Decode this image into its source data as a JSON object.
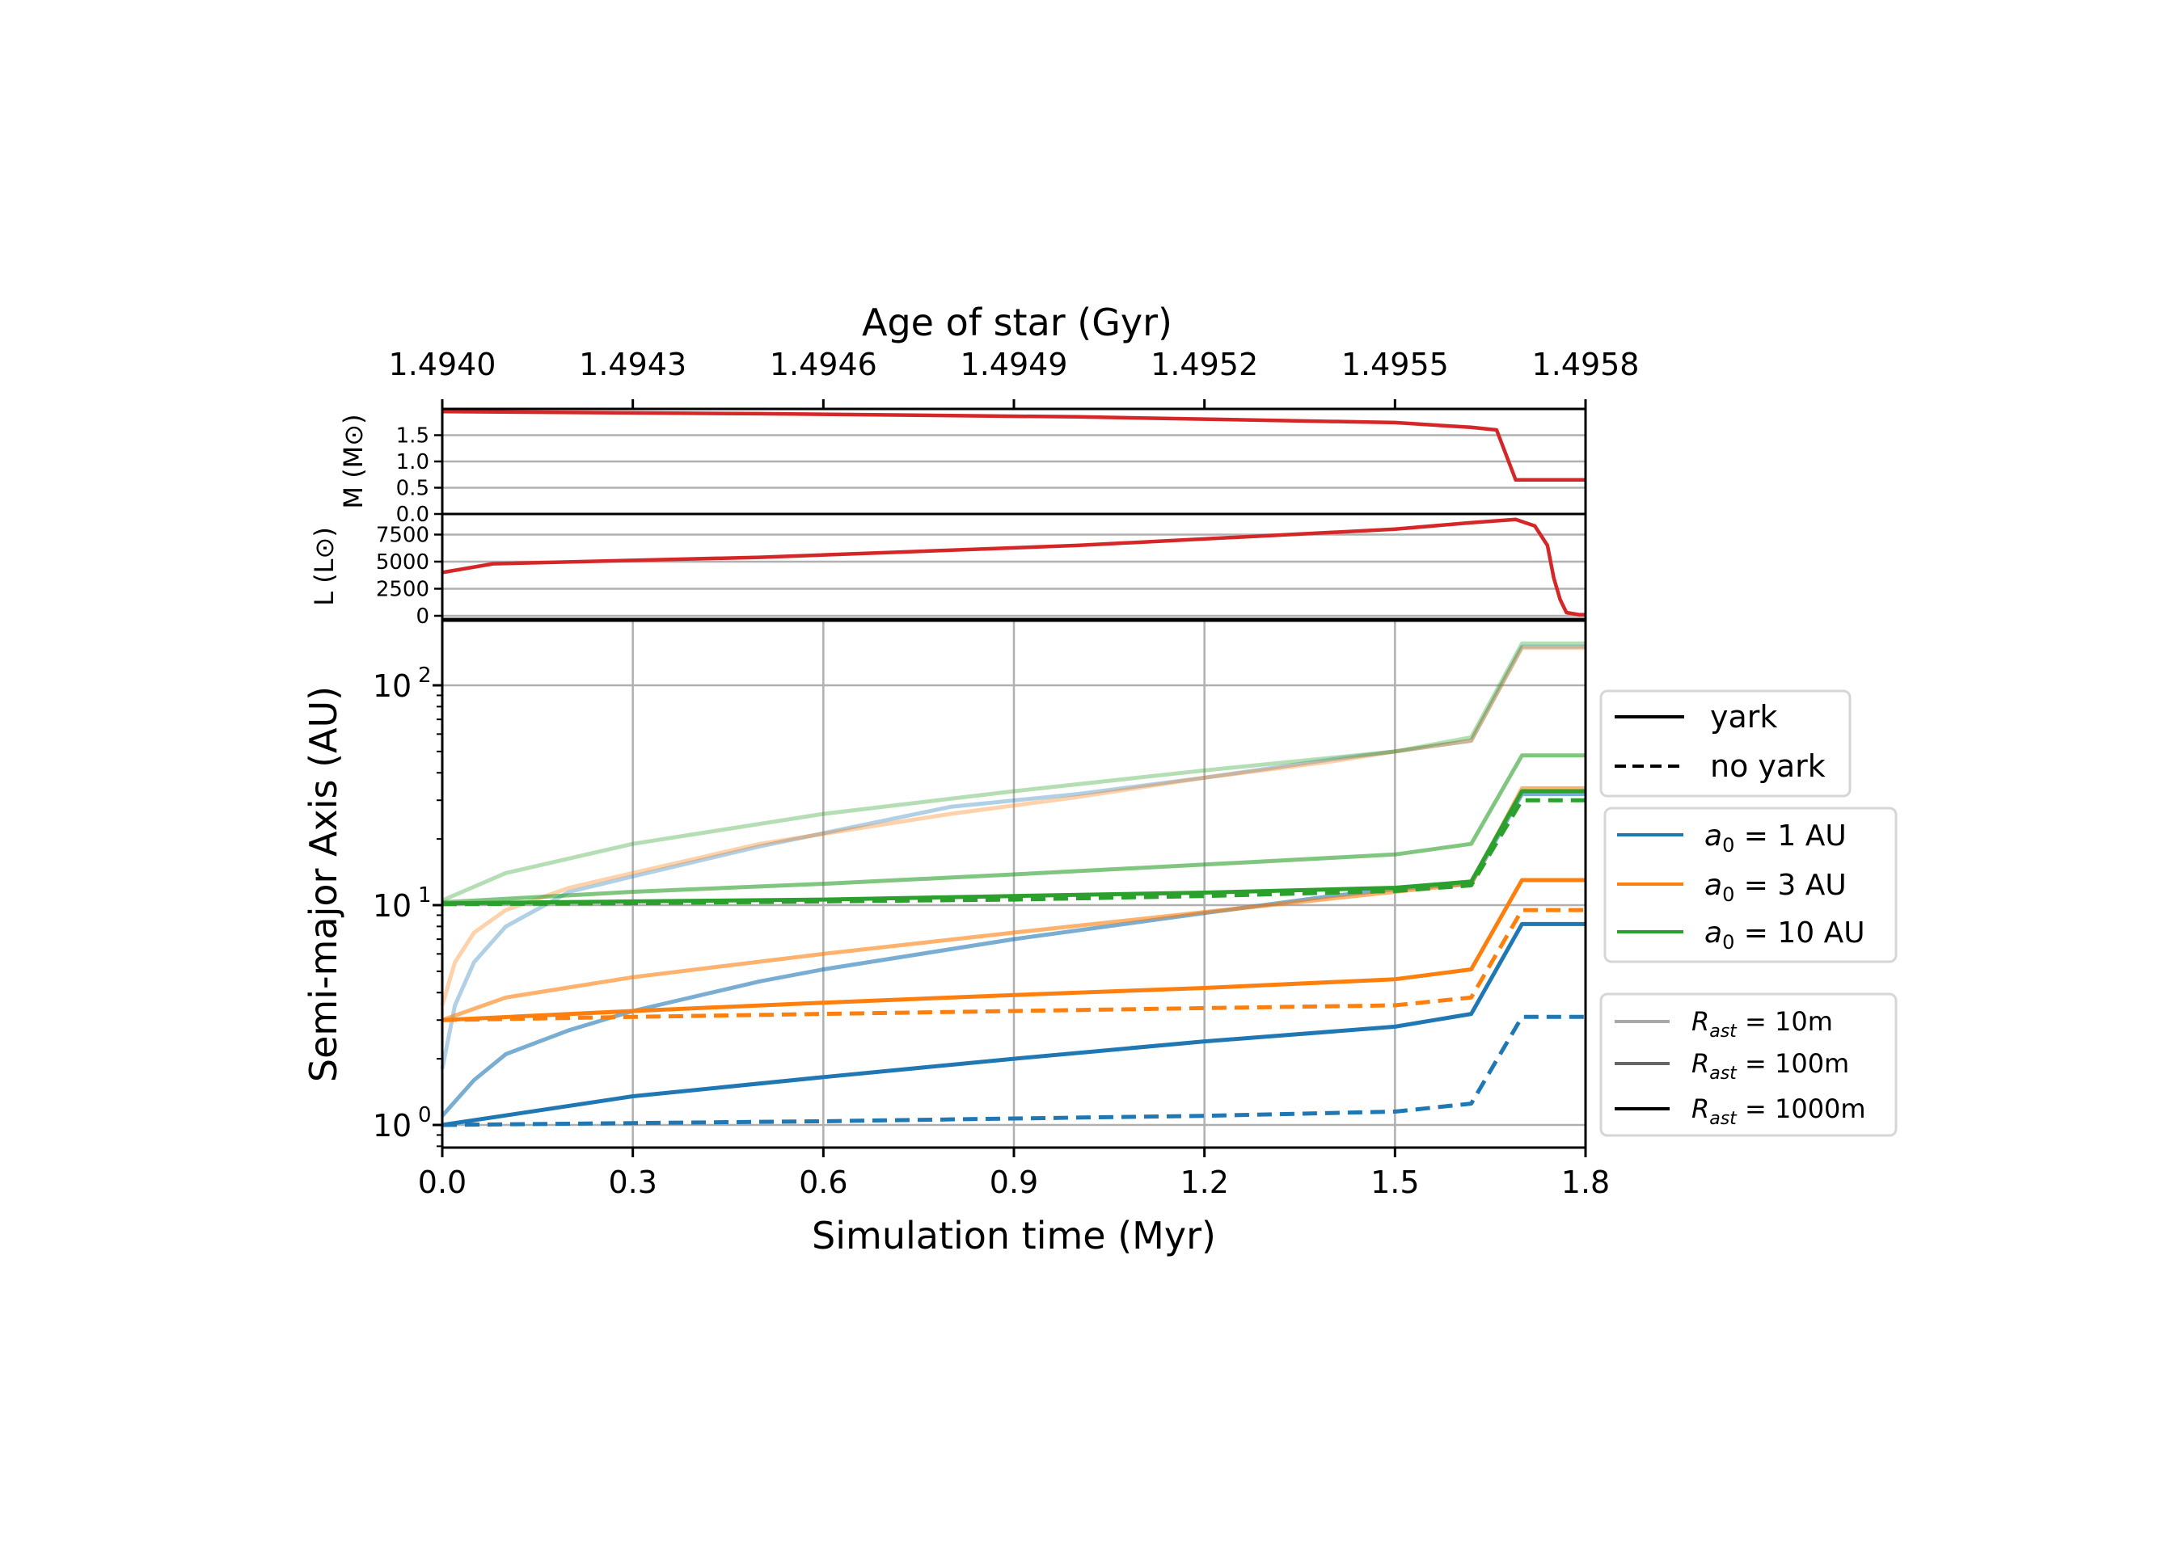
{
  "figure": {
    "top_axis": {
      "label": "Age of star (Gyr)",
      "ticks": [
        "1.4940",
        "1.4943",
        "1.4946",
        "1.4949",
        "1.4952",
        "1.4955",
        "1.4958"
      ]
    },
    "mass_panel": {
      "ylabel": "M (M⊙)",
      "yticks": [
        "0.0",
        "0.5",
        "1.0",
        "1.5"
      ]
    },
    "lum_panel": {
      "ylabel": "L (L⊙)",
      "yticks": [
        "0",
        "2500",
        "5000",
        "7500"
      ]
    },
    "main_panel": {
      "ylabel": "Semi-major Axis (AU)",
      "xlabel": "Simulation time (Myr)"
    },
    "legends": {
      "style": {
        "solid": "yark",
        "dashed": "no yark"
      },
      "a0": [
        "a₀ = 1 AU",
        "a₀ = 3 AU",
        "a₀ = 10 AU"
      ],
      "radius": [
        "R_ast = 10m",
        "R_ast = 100m",
        "R_ast = 1000m"
      ]
    },
    "colors": {
      "blue": "#1f77b4",
      "orange": "#ff7f0e",
      "green": "#2ca02c",
      "red": "#d62728"
    }
  },
  "chart_data": [
    {
      "type": "line",
      "title": "",
      "xlabel": "Age of star (Gyr)",
      "ylabel": "M (M⊙)",
      "xlim": [
        1.494,
        1.4958
      ],
      "ylim": [
        0,
        2.0
      ],
      "grid": true,
      "series": [
        {
          "x": [
            1.494,
            1.4945,
            1.495,
            1.4955,
            1.49562,
            1.49566,
            1.49569,
            1.49571,
            1.4958
          ],
          "y": [
            1.95,
            1.91,
            1.85,
            1.74,
            1.65,
            1.6,
            0.65,
            0.65,
            0.65
          ],
          "color": "#d62728"
        }
      ]
    },
    {
      "type": "line",
      "title": "",
      "xlabel": "Age of star (Gyr)",
      "ylabel": "L (L⊙)",
      "xlim": [
        1.494,
        1.4958
      ],
      "ylim": [
        -300,
        9400
      ],
      "grid": true,
      "series": [
        {
          "x": [
            1.494,
            1.49408,
            1.4945,
            1.495,
            1.4955,
            1.49562,
            1.49569,
            1.49572,
            1.49574,
            1.49575,
            1.49576,
            1.49577,
            1.49579,
            1.4958
          ],
          "y": [
            4000,
            4800,
            5400,
            6500,
            8000,
            8600,
            8900,
            8300,
            6500,
            3500,
            1500,
            300,
            100,
            100
          ],
          "color": "#d62728"
        }
      ]
    },
    {
      "type": "line",
      "title": "",
      "xlabel": "Simulation time (Myr)",
      "ylabel": "Semi-major Axis (AU)",
      "xlim": [
        0,
        1.8
      ],
      "xticks": [
        "0.0",
        "0.3",
        "0.6",
        "0.9",
        "1.2",
        "1.5",
        "1.8"
      ],
      "ylim": [
        0.8,
        200
      ],
      "yscale": "log",
      "grid": true,
      "legend_placement": "right",
      "series": [
        {
          "a0": 1,
          "radius": "10m",
          "style": "solid",
          "color": "#1f77b4",
          "opacity": 0.35,
          "x": [
            0,
            0.02,
            0.05,
            0.1,
            0.2,
            0.3,
            0.5,
            0.8,
            1.0,
            1.2,
            1.4,
            1.5,
            1.62,
            1.7,
            1.8
          ],
          "y": [
            1.8,
            3.5,
            5.5,
            8,
            11.5,
            13.5,
            18.5,
            28,
            32,
            38,
            46,
            50,
            56,
            150,
            150
          ]
        },
        {
          "a0": 1,
          "radius": "100m",
          "style": "solid",
          "color": "#1f77b4",
          "opacity": 0.6,
          "x": [
            0,
            0.05,
            0.1,
            0.2,
            0.3,
            0.5,
            0.6,
            0.9,
            1.2,
            1.4,
            1.5,
            1.62,
            1.7,
            1.8
          ],
          "y": [
            1.1,
            1.6,
            2.1,
            2.7,
            3.3,
            4.5,
            5.1,
            7.0,
            9.2,
            11,
            11.8,
            12.5,
            32,
            32
          ]
        },
        {
          "a0": 1,
          "radius": "1000m",
          "style": "solid",
          "color": "#1f77b4",
          "opacity": 1,
          "x": [
            0,
            0.3,
            0.6,
            0.9,
            1.2,
            1.5,
            1.62,
            1.7,
            1.8
          ],
          "y": [
            1.0,
            1.35,
            1.65,
            2.0,
            2.4,
            2.8,
            3.2,
            8.2,
            8.2
          ]
        },
        {
          "a0": 1,
          "radius": "1000m",
          "style": "dashed",
          "color": "#1f77b4",
          "opacity": 1,
          "x": [
            0,
            0.3,
            0.6,
            0.9,
            1.2,
            1.5,
            1.62,
            1.7,
            1.8
          ],
          "y": [
            1.0,
            1.02,
            1.04,
            1.07,
            1.1,
            1.15,
            1.25,
            3.1,
            3.1
          ]
        },
        {
          "a0": 3,
          "radius": "10m",
          "style": "solid",
          "color": "#ff7f0e",
          "opacity": 0.35,
          "x": [
            0,
            0.02,
            0.05,
            0.1,
            0.2,
            0.3,
            0.5,
            0.8,
            1.0,
            1.2,
            1.4,
            1.5,
            1.62,
            1.7,
            1.8
          ],
          "y": [
            3.5,
            5.5,
            7.5,
            9.5,
            12,
            14,
            19,
            26,
            31,
            38,
            45,
            50,
            56,
            148,
            148
          ]
        },
        {
          "a0": 3,
          "radius": "100m",
          "style": "solid",
          "color": "#ff7f0e",
          "opacity": 0.6,
          "x": [
            0,
            0.1,
            0.3,
            0.6,
            0.9,
            1.2,
            1.5,
            1.62,
            1.7,
            1.8
          ],
          "y": [
            3.0,
            3.8,
            4.7,
            6.0,
            7.5,
            9.3,
            11.5,
            12.5,
            34,
            34
          ]
        },
        {
          "a0": 3,
          "radius": "1000m",
          "style": "solid",
          "color": "#ff7f0e",
          "opacity": 1,
          "x": [
            0,
            0.3,
            0.6,
            0.9,
            1.2,
            1.5,
            1.62,
            1.7,
            1.8
          ],
          "y": [
            3.0,
            3.3,
            3.6,
            3.9,
            4.2,
            4.6,
            5.1,
            13,
            13
          ]
        },
        {
          "a0": 3,
          "radius": "1000m",
          "style": "dashed",
          "color": "#ff7f0e",
          "opacity": 1,
          "x": [
            0,
            0.3,
            0.6,
            0.9,
            1.2,
            1.5,
            1.62,
            1.7,
            1.8
          ],
          "y": [
            3.0,
            3.1,
            3.2,
            3.3,
            3.4,
            3.5,
            3.8,
            9.5,
            9.5
          ]
        },
        {
          "a0": 10,
          "radius": "10m",
          "style": "solid",
          "color": "#2ca02c",
          "opacity": 0.35,
          "x": [
            0,
            0.1,
            0.3,
            0.6,
            0.9,
            1.2,
            1.5,
            1.62,
            1.7,
            1.8
          ],
          "y": [
            10.5,
            14,
            19,
            26,
            33,
            41,
            50,
            58,
            155,
            155
          ]
        },
        {
          "a0": 10,
          "radius": "100m",
          "style": "solid",
          "color": "#2ca02c",
          "opacity": 0.6,
          "x": [
            0,
            0.3,
            0.6,
            0.9,
            1.2,
            1.5,
            1.62,
            1.7,
            1.8
          ],
          "y": [
            10.3,
            11.5,
            12.5,
            13.8,
            15.3,
            17,
            19,
            48,
            48
          ]
        },
        {
          "a0": 10,
          "radius": "1000m",
          "style": "solid",
          "color": "#2ca02c",
          "opacity": 1,
          "x": [
            0,
            0.3,
            0.6,
            0.9,
            1.2,
            1.5,
            1.62,
            1.7,
            1.8
          ],
          "y": [
            10.2,
            10.4,
            10.6,
            11,
            11.4,
            12,
            12.8,
            33,
            33
          ]
        },
        {
          "a0": 10,
          "radius": "1000m",
          "style": "dashed",
          "color": "#2ca02c",
          "opacity": 1,
          "x": [
            0,
            0.3,
            0.6,
            0.9,
            1.2,
            1.5,
            1.62,
            1.7,
            1.8
          ],
          "y": [
            10.1,
            10.2,
            10.4,
            10.6,
            11,
            11.6,
            12.3,
            30,
            30
          ]
        }
      ]
    }
  ]
}
